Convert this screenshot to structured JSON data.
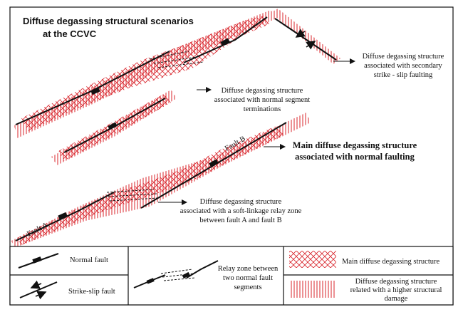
{
  "title": {
    "line1": "Diffuse degassing structural scenarios",
    "line2": "at the CCVC"
  },
  "labels": {
    "secondary": [
      "Diffuse degassing structure",
      "associated with secondary",
      "strike - slip faulting"
    ],
    "terminations": [
      "Diffuse degassing structure",
      "associated with normal segment",
      "terminations"
    ],
    "main": [
      "Main diffuse degassing structure",
      "associated with normal faulting"
    ],
    "relay": [
      "Diffuse degassing structure",
      "associated with a soft-linkage relay zone",
      "between fault A and fault B"
    ],
    "fault_a": "Fault A",
    "fault_b": "Fault B"
  },
  "legend": {
    "normal_fault": "Normal fault",
    "strike_slip": "Strike-slip fault",
    "relay_zone": [
      "Relay zone between",
      "two normal fault",
      "segments"
    ],
    "main_structure": "Main diffuse degassing structure",
    "higher_damage": [
      "Diffuse degassing structure",
      "related with a higher structural",
      "damage"
    ]
  },
  "colors": {
    "hatch_red": "#d8232a",
    "fault_black": "#111111"
  }
}
